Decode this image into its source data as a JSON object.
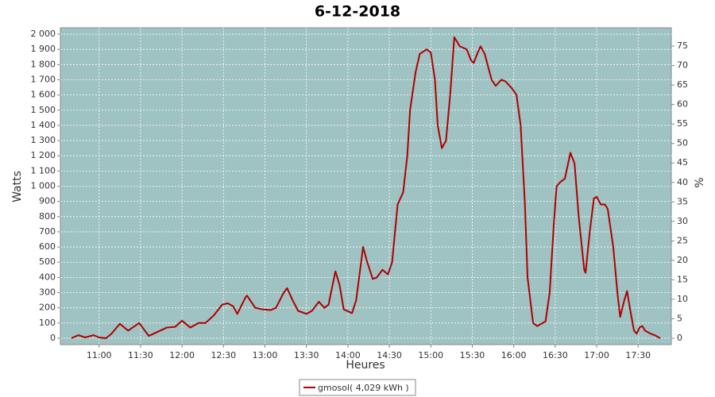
{
  "chart_data": {
    "type": "line",
    "title": "6-12-2018",
    "x_label": "Heures",
    "y_label": "Watts",
    "y2_label": "%",
    "x": [
      "10:40",
      "10:45",
      "10:50",
      "10:56",
      "11:00",
      "11:05",
      "11:09",
      "11:15",
      "11:21",
      "11:29",
      "11:36",
      "11:49",
      "11:55",
      "12:00",
      "12:06",
      "12:12",
      "12:17",
      "12:23",
      "12:29",
      "12:33",
      "12:37",
      "12:40",
      "12:46",
      "12:47",
      "12:53",
      "12:58",
      "13:04",
      "13:08",
      "13:13",
      "13:16",
      "13:20",
      "13:24",
      "13:30",
      "13:34",
      "13:39",
      "13:43",
      "13:46",
      "13:51",
      "13:54",
      "13:57",
      "14:03",
      "14:06",
      "14:11",
      "14:14",
      "14:18",
      "14:21",
      "14:25",
      "14:29",
      "14:32",
      "14:36",
      "14:40",
      "14:43",
      "14:45",
      "14:49",
      "14:52",
      "14:57",
      "15:00",
      "15:03",
      "15:05",
      "15:08",
      "15:11",
      "15:14",
      "15:17",
      "15:21",
      "15:26",
      "15:29",
      "15:31",
      "15:34",
      "15:36",
      "15:39",
      "15:44",
      "15:47",
      "15:51",
      "15:54",
      "15:59",
      "16:02",
      "16:05",
      "16:08",
      "16:10",
      "16:14",
      "16:17",
      "16:21",
      "16:23",
      "16:26",
      "16:29",
      "16:31",
      "16:34",
      "16:37",
      "16:41",
      "16:44",
      "16:47",
      "16:51",
      "16:52",
      "16:55",
      "16:58",
      "17:00",
      "17:03",
      "17:06",
      "17:08",
      "17:12",
      "17:15",
      "17:17",
      "17:20",
      "17:22",
      "17:24",
      "17:27",
      "17:29",
      "17:31",
      "17:33",
      "17:35",
      "17:39",
      "17:42",
      "17:46"
    ],
    "series": [
      {
        "name": "gmosol( 4,029 kWh )",
        "color": "#b00000",
        "values": [
          0,
          20,
          5,
          20,
          5,
          0,
          30,
          95,
          50,
          100,
          15,
          70,
          75,
          115,
          70,
          100,
          100,
          150,
          220,
          230,
          210,
          160,
          270,
          280,
          200,
          190,
          185,
          200,
          290,
          330,
          250,
          180,
          160,
          180,
          240,
          200,
          220,
          440,
          350,
          190,
          165,
          250,
          600,
          500,
          390,
          400,
          450,
          420,
          500,
          880,
          960,
          1200,
          1500,
          1750,
          1870,
          1900,
          1880,
          1700,
          1400,
          1250,
          1300,
          1600,
          1980,
          1920,
          1900,
          1830,
          1810,
          1880,
          1920,
          1870,
          1700,
          1660,
          1700,
          1690,
          1640,
          1600,
          1400,
          900,
          400,
          100,
          80,
          100,
          110,
          300,
          750,
          1000,
          1030,
          1050,
          1220,
          1150,
          800,
          450,
          430,
          700,
          920,
          930,
          880,
          880,
          850,
          600,
          300,
          140,
          250,
          310,
          200,
          50,
          30,
          70,
          80,
          50,
          30,
          20,
          0
        ]
      }
    ],
    "xlim": [
      "10:32",
      "17:54"
    ],
    "xticks": [
      "11:00",
      "11:30",
      "12:00",
      "12:30",
      "13:00",
      "13:30",
      "14:00",
      "14:30",
      "15:00",
      "15:30",
      "16:00",
      "16:30",
      "17:00",
      "17:30"
    ],
    "ylim": [
      -42,
      2042
    ],
    "yticks": [
      0,
      100,
      200,
      300,
      400,
      500,
      600,
      700,
      800,
      900,
      {
        "value": 1000,
        "label": "1 000"
      },
      {
        "value": 1100,
        "label": "1 100"
      },
      {
        "value": 1200,
        "label": "1 200"
      },
      {
        "value": 1300,
        "label": "1 300"
      },
      {
        "value": 1400,
        "label": "1 400"
      },
      {
        "value": 1500,
        "label": "1 500"
      },
      {
        "value": 1600,
        "label": "1 600"
      },
      {
        "value": 1700,
        "label": "1 700"
      },
      {
        "value": 1800,
        "label": "1 800"
      },
      {
        "value": 1900,
        "label": "1 900"
      },
      {
        "value": 2000,
        "label": "2 000"
      }
    ],
    "y2lim": [
      -1.63,
      79.7
    ],
    "y2ticks": [
      0,
      5,
      10,
      15,
      20,
      25,
      30,
      35,
      40,
      45,
      50,
      55,
      60,
      65,
      70,
      75
    ],
    "grid": true,
    "plot_background": "#9fc2c2"
  }
}
